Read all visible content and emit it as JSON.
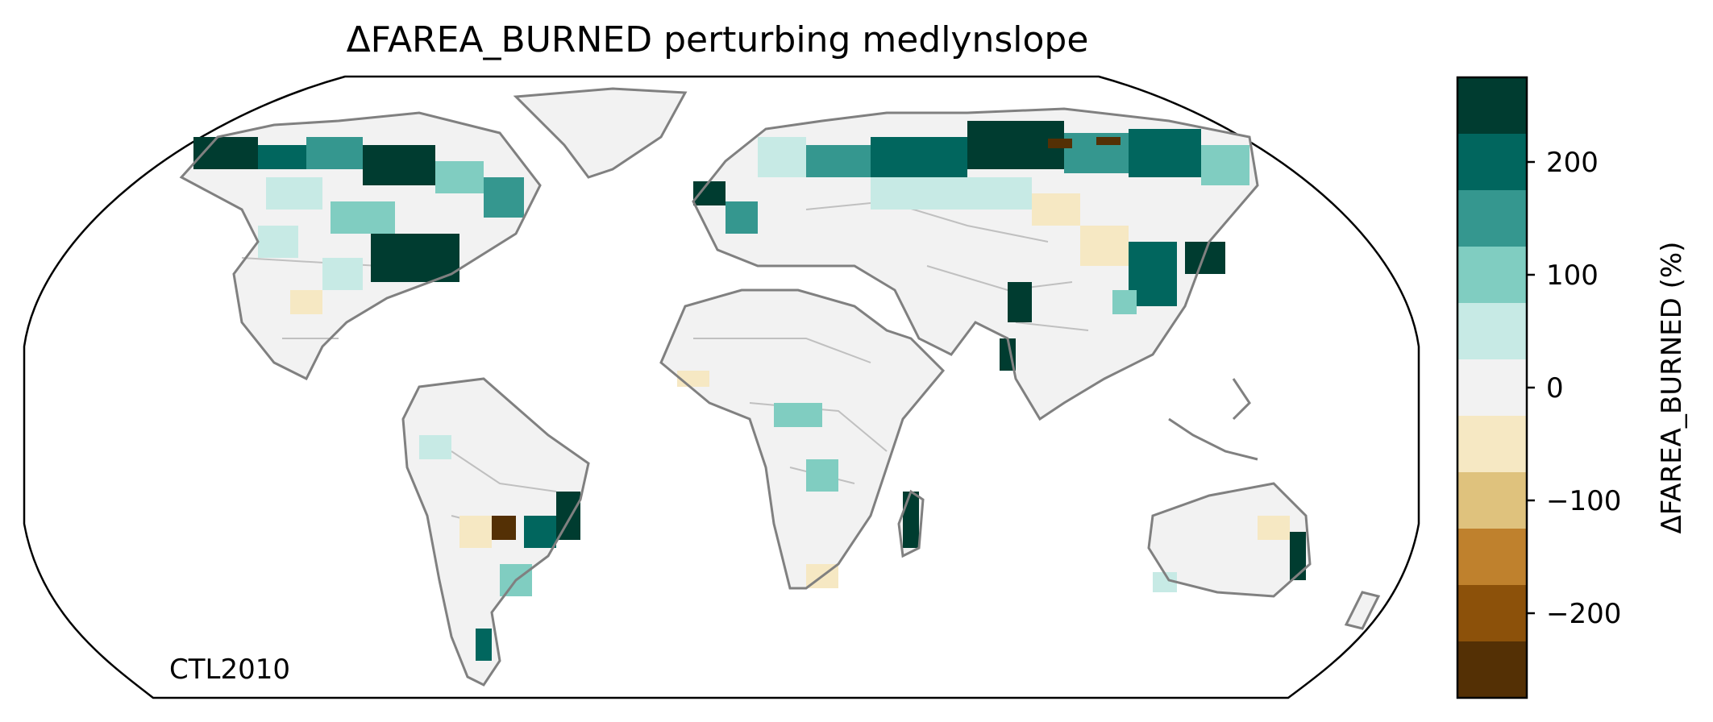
{
  "title": "ΔFAREA_BURNED perturbing medlynslope",
  "annotation": "CTL2010",
  "colorbar": {
    "label": "ΔFAREA_BURNED (%)",
    "ticks": [
      {
        "value": 200,
        "label": "200"
      },
      {
        "value": 100,
        "label": "100"
      },
      {
        "value": 0,
        "label": "0"
      },
      {
        "value": -100,
        "label": "−100"
      },
      {
        "value": -200,
        "label": "−200"
      }
    ],
    "range": [
      -275,
      275
    ],
    "bins": [
      {
        "from": 225,
        "to": 275,
        "color": "#003c30"
      },
      {
        "from": 175,
        "to": 225,
        "color": "#01665e"
      },
      {
        "from": 125,
        "to": 175,
        "color": "#35978f"
      },
      {
        "from": 75,
        "to": 125,
        "color": "#80cdc1"
      },
      {
        "from": 25,
        "to": 75,
        "color": "#c7eae5"
      },
      {
        "from": -25,
        "to": 25,
        "color": "#f2f2f2"
      },
      {
        "from": -75,
        "to": -25,
        "color": "#f6e8c3"
      },
      {
        "from": -125,
        "to": -75,
        "color": "#dfc27d"
      },
      {
        "from": -175,
        "to": -125,
        "color": "#bf812d"
      },
      {
        "from": -225,
        "to": -175,
        "color": "#8c510a"
      },
      {
        "from": -275,
        "to": -225,
        "color": "#543005"
      }
    ]
  },
  "map": {
    "projection": "Robinson",
    "coastline_color": "#808080",
    "border_color": "#c0c0c0"
  }
}
